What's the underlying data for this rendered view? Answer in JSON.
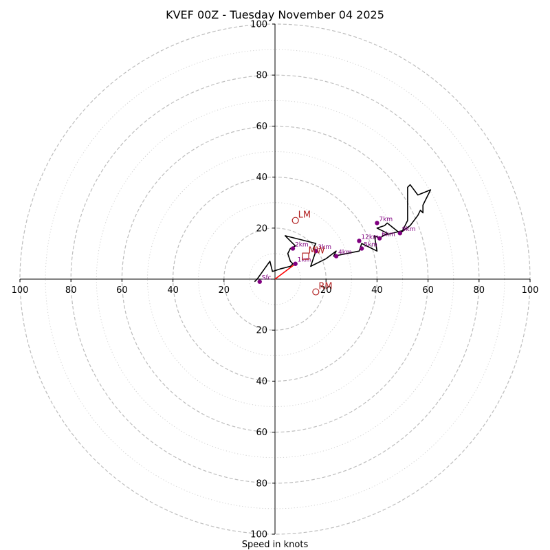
{
  "chart_data": {
    "type": "hodograph",
    "title": "KVEF 00Z - Tuesday November 04 2025",
    "xlabel": "Speed in knots",
    "ring_max": 100,
    "major_rings": [
      20,
      40,
      60,
      80,
      100
    ],
    "minor_rings": [
      10,
      30,
      50,
      70,
      90
    ],
    "ticks": {
      "top": [
        "20",
        "40",
        "60",
        "80",
        "100"
      ],
      "bottom": [
        "20",
        "40",
        "60",
        "80",
        "100"
      ],
      "left": [
        "20",
        "40",
        "60",
        "80",
        "100"
      ],
      "right": [
        "20",
        "40",
        "60",
        "80",
        "100"
      ]
    },
    "hodograph_trace": [
      [
        -8,
        -1
      ],
      [
        -7,
        0
      ],
      [
        -2,
        7
      ],
      [
        -1,
        3
      ],
      [
        2,
        4
      ],
      [
        6,
        5
      ],
      [
        7,
        6
      ],
      [
        6,
        7
      ],
      [
        5,
        10
      ],
      [
        6,
        12
      ],
      [
        8,
        13
      ],
      [
        4,
        17
      ],
      [
        16,
        14
      ],
      [
        15,
        12
      ],
      [
        16,
        11
      ],
      [
        14,
        5
      ],
      [
        20,
        8
      ],
      [
        24,
        11
      ],
      [
        23,
        9
      ],
      [
        33,
        11
      ],
      [
        34,
        14
      ],
      [
        40,
        11
      ],
      [
        39,
        17
      ],
      [
        41,
        16
      ],
      [
        44,
        18
      ],
      [
        40,
        20
      ],
      [
        43,
        21
      ],
      [
        44,
        22
      ],
      [
        49,
        18
      ],
      [
        53,
        21
      ],
      [
        56,
        25
      ],
      [
        57,
        27
      ],
      [
        58,
        26
      ],
      [
        58,
        29
      ],
      [
        61,
        35
      ],
      [
        56,
        33
      ],
      [
        53,
        37
      ],
      [
        52,
        36
      ],
      [
        52,
        23
      ],
      [
        50,
        19
      ],
      [
        42,
        17
      ]
    ],
    "storm_motion_line": [
      [
        0,
        0
      ],
      [
        8,
        6
      ]
    ],
    "height_markers": [
      {
        "label": "Sfc",
        "u": -6,
        "v": -1
      },
      {
        "label": "1km",
        "u": 8,
        "v": 6
      },
      {
        "label": "2km",
        "u": 7,
        "v": 12
      },
      {
        "label": "3km",
        "u": 16,
        "v": 11
      },
      {
        "label": "4km",
        "u": 24,
        "v": 9
      },
      {
        "label": "5km",
        "u": 34,
        "v": 12
      },
      {
        "label": "6km",
        "u": 41,
        "v": 16
      },
      {
        "label": "7km",
        "u": 40,
        "v": 22
      },
      {
        "label": "9km",
        "u": 49,
        "v": 18
      },
      {
        "label": "12km",
        "u": 33,
        "v": 15
      }
    ],
    "storm_motions": [
      {
        "label": "LM",
        "u": 8,
        "v": 23,
        "shape": "circle"
      },
      {
        "label": "RM",
        "u": 16,
        "v": -5,
        "shape": "circle"
      },
      {
        "label": "MW",
        "u": 12,
        "v": 9,
        "shape": "square"
      }
    ],
    "colors": {
      "grid": "#bdbdbd",
      "axis": "#000000",
      "trace": "#000000",
      "storm_line": "#ff0000",
      "height_marker": "#800080",
      "storm_motion": "#b22222"
    }
  }
}
